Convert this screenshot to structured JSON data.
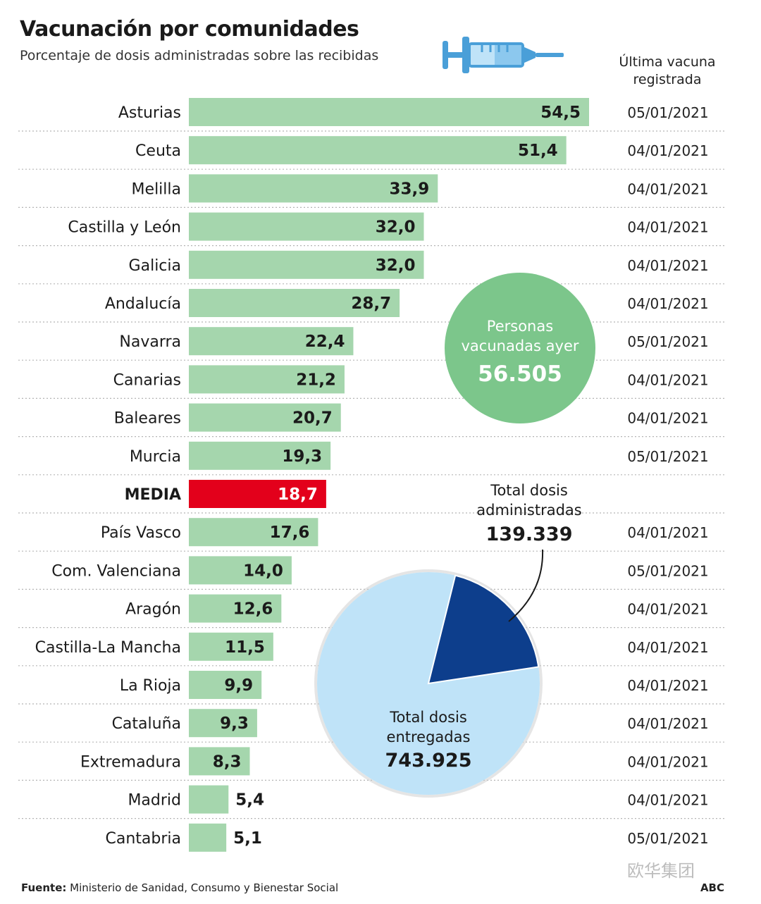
{
  "chart_data": {
    "type": "bar",
    "orientation": "horizontal",
    "title": "Vacunación por comunidades",
    "subtitle": "Porcentaje de dosis administradas sobre las recibidas",
    "date_column_header": "Última vacuna registrada",
    "xlim": [
      0,
      54.5
    ],
    "rows": [
      {
        "label": "Asturias",
        "value": 54.5,
        "value_label": "54,5",
        "date": "05/01/2021"
      },
      {
        "label": "Ceuta",
        "value": 51.4,
        "value_label": "51,4",
        "date": "04/01/2021"
      },
      {
        "label": "Melilla",
        "value": 33.9,
        "value_label": "33,9",
        "date": "04/01/2021"
      },
      {
        "label": "Castilla y León",
        "value": 32.0,
        "value_label": "32,0",
        "date": "04/01/2021"
      },
      {
        "label": "Galicia",
        "value": 32.0,
        "value_label": "32,0",
        "date": "04/01/2021"
      },
      {
        "label": "Andalucía",
        "value": 28.7,
        "value_label": "28,7",
        "date": "04/01/2021"
      },
      {
        "label": "Navarra",
        "value": 22.4,
        "value_label": "22,4",
        "date": "05/01/2021"
      },
      {
        "label": "Canarias",
        "value": 21.2,
        "value_label": "21,2",
        "date": "04/01/2021"
      },
      {
        "label": "Baleares",
        "value": 20.7,
        "value_label": "20,7",
        "date": "04/01/2021"
      },
      {
        "label": "Murcia",
        "value": 19.3,
        "value_label": "19,3",
        "date": "05/01/2021"
      },
      {
        "label": "MEDIA",
        "value": 18.7,
        "value_label": "18,7",
        "date": "",
        "highlight": true
      },
      {
        "label": "País Vasco",
        "value": 17.6,
        "value_label": "17,6",
        "date": "04/01/2021"
      },
      {
        "label": "Com. Valenciana",
        "value": 14.0,
        "value_label": "14,0",
        "date": "05/01/2021"
      },
      {
        "label": "Aragón",
        "value": 12.6,
        "value_label": "12,6",
        "date": "04/01/2021"
      },
      {
        "label": "Castilla-La Mancha",
        "value": 11.5,
        "value_label": "11,5",
        "date": "04/01/2021"
      },
      {
        "label": "La Rioja",
        "value": 9.9,
        "value_label": "9,9",
        "date": "04/01/2021"
      },
      {
        "label": "Cataluña",
        "value": 9.3,
        "value_label": "9,3",
        "date": "04/01/2021"
      },
      {
        "label": "Extremadura",
        "value": 8.3,
        "value_label": "8,3",
        "date": "04/01/2021"
      },
      {
        "label": "Madrid",
        "value": 5.4,
        "value_label": "5,4",
        "date": "04/01/2021"
      },
      {
        "label": "Cantabria",
        "value": 5.1,
        "value_label": "5,1",
        "date": "05/01/2021"
      }
    ],
    "bubble": {
      "line1": "Personas",
      "line2": "vacunadas ayer",
      "value": 56505,
      "value_label": "56.505"
    },
    "pie": {
      "administered": {
        "line1": "Total dosis",
        "line2": "administradas",
        "value": 139339,
        "value_label": "139.339"
      },
      "delivered": {
        "line1": "Total dosis",
        "line2": "entregadas",
        "value": 743925,
        "value_label": "743.925"
      }
    }
  },
  "colors": {
    "bar": "#a5d6ad",
    "bar_highlight": "#e3001b",
    "bubble": "#7cc68b",
    "pie_delivered": "#bfe3f8",
    "pie_administered": "#0d3e8c",
    "divider": "#b5b5b5"
  },
  "icons": {
    "syringe": "syringe-icon"
  },
  "footer": {
    "source_label": "Fuente:",
    "source_text": " Ministerio de Sanidad, Consumo y Bienestar Social",
    "credit": "ABC"
  },
  "watermark": "欧华集团"
}
